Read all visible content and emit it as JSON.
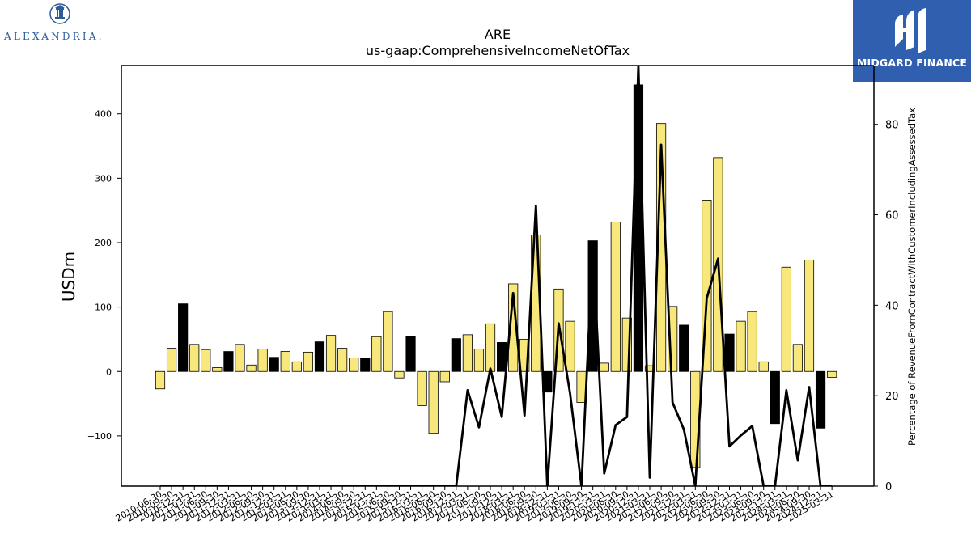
{
  "logos": {
    "left_text": "ALEXANDRIA.",
    "right_text": "MIDGARD FINANCE",
    "left_icon": "building-seal-icon",
    "right_icon": "midgard-m-icon"
  },
  "chart_data": {
    "type": "bar",
    "title": "ARE",
    "subtitle": "us-gaap:ComprehensiveIncomeNetOfTax",
    "ylabel": "USDm",
    "y2label": "Percentage of RevenueFromContractWithCustomerIncludingAssessedTax",
    "ylim": [
      -178,
      475
    ],
    "y2lim": [
      0,
      93
    ],
    "yticks": [
      -100,
      0,
      100,
      200,
      300,
      400
    ],
    "yticklabels": [
      "−100",
      "0",
      "100",
      "200",
      "300",
      "400"
    ],
    "y2ticks": [
      0,
      20,
      40,
      60,
      80
    ],
    "colors": {
      "positive_q": "#f8e77a",
      "q4": "#000000",
      "line": "#000000",
      "axes": "#000000"
    },
    "categories": [
      "2010-06-30",
      "2010-09-30",
      "2010-12-31",
      "2011-03-31",
      "2011-06-30",
      "2011-09-30",
      "2011-12-31",
      "2012-03-31",
      "2012-06-30",
      "2012-09-30",
      "2012-12-31",
      "2013-03-31",
      "2013-06-30",
      "2013-09-30",
      "2013-12-31",
      "2014-03-31",
      "2014-06-30",
      "2014-09-30",
      "2014-12-31",
      "2015-03-31",
      "2015-06-30",
      "2015-09-30",
      "2015-12-31",
      "2016-03-31",
      "2016-06-30",
      "2016-09-30",
      "2016-12-31",
      "2017-03-31",
      "2017-06-30",
      "2017-09-30",
      "2017-12-31",
      "2018-03-31",
      "2018-06-30",
      "2018-09-30",
      "2018-12-31",
      "2019-03-31",
      "2019-06-30",
      "2019-09-30",
      "2019-12-31",
      "2020-03-31",
      "2020-06-30",
      "2020-09-30",
      "2020-12-31",
      "2021-03-31",
      "2021-06-30",
      "2021-09-30",
      "2021-12-31",
      "2022-03-31",
      "2022-06-30",
      "2022-09-30",
      "2022-12-31",
      "2023-03-31",
      "2023-06-30",
      "2023-09-30",
      "2023-12-31",
      "2024-03-31",
      "2024-06-30",
      "2024-09-30",
      "2024-12-31",
      "2025-03-31"
    ],
    "series": [
      {
        "type": "bar",
        "values": [
          -27,
          36,
          105,
          42,
          34,
          6,
          31,
          42,
          10,
          35,
          22,
          31,
          15,
          30,
          46,
          56,
          36,
          21,
          20,
          54,
          93,
          -10,
          55,
          -53,
          -96,
          -16,
          51,
          57,
          35,
          74,
          45,
          136,
          50,
          212,
          -32,
          128,
          78,
          -48,
          203,
          13,
          232,
          83,
          445,
          9,
          385,
          101,
          72,
          -149,
          266,
          332,
          58,
          78,
          93,
          15,
          -81,
          162,
          42,
          173,
          -88,
          -9
        ],
        "highlight": [
          false,
          false,
          true,
          false,
          false,
          false,
          true,
          false,
          false,
          false,
          true,
          false,
          false,
          false,
          true,
          false,
          false,
          false,
          true,
          false,
          false,
          false,
          true,
          false,
          false,
          false,
          true,
          false,
          false,
          false,
          true,
          false,
          false,
          false,
          true,
          false,
          false,
          false,
          true,
          false,
          false,
          false,
          true,
          false,
          false,
          false,
          true,
          false,
          false,
          false,
          true,
          false,
          false,
          false,
          true,
          false,
          false,
          false,
          true,
          false
        ]
      },
      {
        "type": "line",
        "axis": "right",
        "values": [
          0,
          0,
          0,
          0,
          0,
          0,
          0,
          0,
          0,
          0,
          0,
          0,
          0,
          0,
          0,
          0,
          0,
          0,
          0,
          0,
          0,
          0,
          0,
          0,
          0,
          0,
          0,
          21.2,
          13,
          26,
          15.3,
          42.7,
          15.6,
          62,
          0,
          36,
          20.5,
          0,
          53,
          2.8,
          13.5,
          15.3,
          93,
          1.9,
          75.5,
          18.5,
          12.5,
          0,
          41.5,
          50.3,
          8.8,
          11.2,
          13.3,
          0,
          0,
          21.2,
          5.7,
          21.9,
          0,
          0
        ]
      }
    ]
  }
}
